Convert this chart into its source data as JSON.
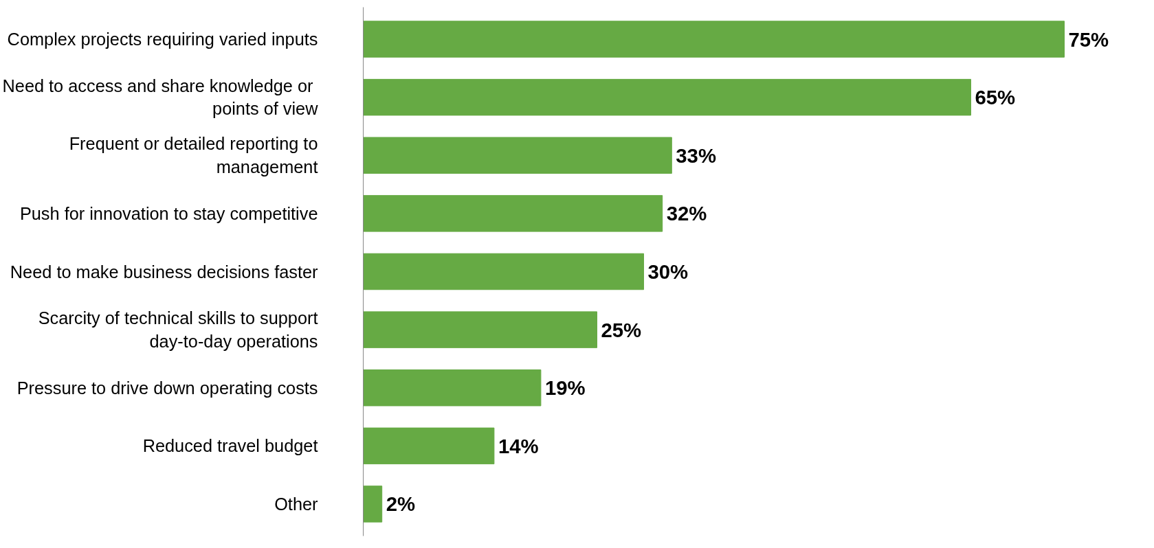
{
  "chart_data": {
    "type": "bar",
    "orientation": "horizontal",
    "categories": [
      "Complex projects requiring varied inputs",
      "Need  to access and share knowledge or points of view",
      "Frequent or detailed reporting to management",
      "Push for innovation to stay competitive",
      "Need to make business decisions faster",
      "Scarcity of technical skills to support day-to-day operations",
      "Pressure to drive down operating costs",
      "Reduced travel budget",
      "Other"
    ],
    "values": [
      75,
      65,
      33,
      32,
      30,
      25,
      19,
      14,
      2
    ],
    "value_labels": [
      "75%",
      "65%",
      "33%",
      "32%",
      "30%",
      "25%",
      "19%",
      "14%",
      "2%"
    ],
    "color": "#66aa44",
    "grid": false
  }
}
